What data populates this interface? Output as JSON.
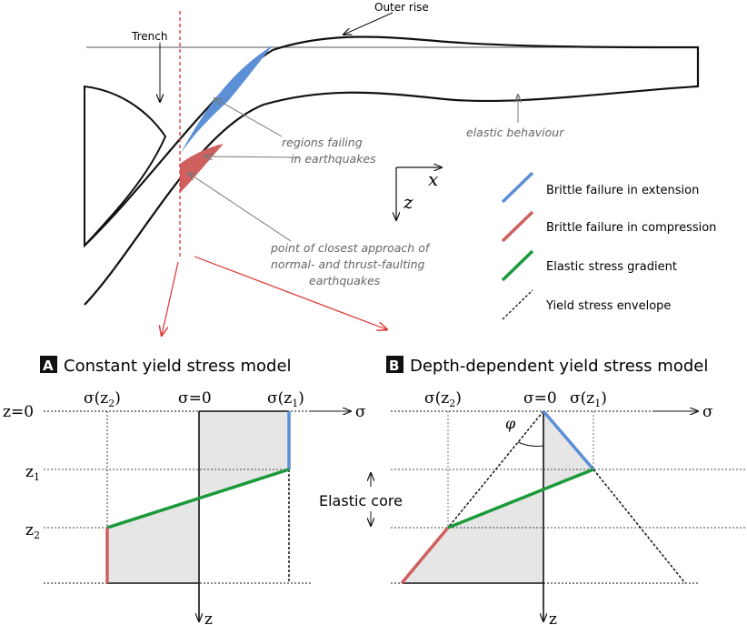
{
  "top": {
    "outer_rise": "Outer rise",
    "trench": "Trench",
    "regions_failing": [
      "regions failing",
      "in earthquakes"
    ],
    "elastic_behaviour": "elastic behaviour",
    "closest_approach": [
      "point of closest approach of",
      "normal- and thrust-faulting",
      "earthquakes"
    ],
    "axis_x": "x",
    "axis_z": "z"
  },
  "legend": [
    {
      "label": "Brittle failure in extension",
      "color": "#5b8fd6",
      "style": "solid"
    },
    {
      "label": "Brittle failure in compression",
      "color": "#d05f5f",
      "style": "solid"
    },
    {
      "label": "Elastic stress gradient",
      "color": "#1a9a3a",
      "style": "solid"
    },
    {
      "label": "Yield stress envelope",
      "color": "#111111",
      "style": "dashed"
    }
  ],
  "panel_a": {
    "badge": "A",
    "title": "Constant yield stress model",
    "sigma_z2": "σ(z",
    "sigma_z2_sub": "2",
    "sigma_zero": "σ=0",
    "sigma_z1": "σ(z",
    "sigma_z1_sub": "1",
    "z0": "z=0",
    "z1": "z",
    "z1_sub": "1",
    "z2": "z",
    "z2_sub": "2",
    "sigma_axis": "σ",
    "z_axis": "z"
  },
  "panel_b": {
    "badge": "B",
    "title": "Depth-dependent yield stress model",
    "sigma_z2": "σ(z",
    "sigma_z2_sub": "2",
    "sigma_zero": "σ=0",
    "sigma_z1": "σ(z",
    "sigma_z1_sub": "1",
    "phi": "φ",
    "sigma_axis": "σ",
    "z_axis": "z"
  },
  "elastic_core": "Elastic core",
  "colors": {
    "extension": "#5b8fd6",
    "compression": "#d05f5f",
    "elastic": "#1a9a3a",
    "guide_red": "#e03030",
    "fill_gray": "#e6e6e6"
  }
}
